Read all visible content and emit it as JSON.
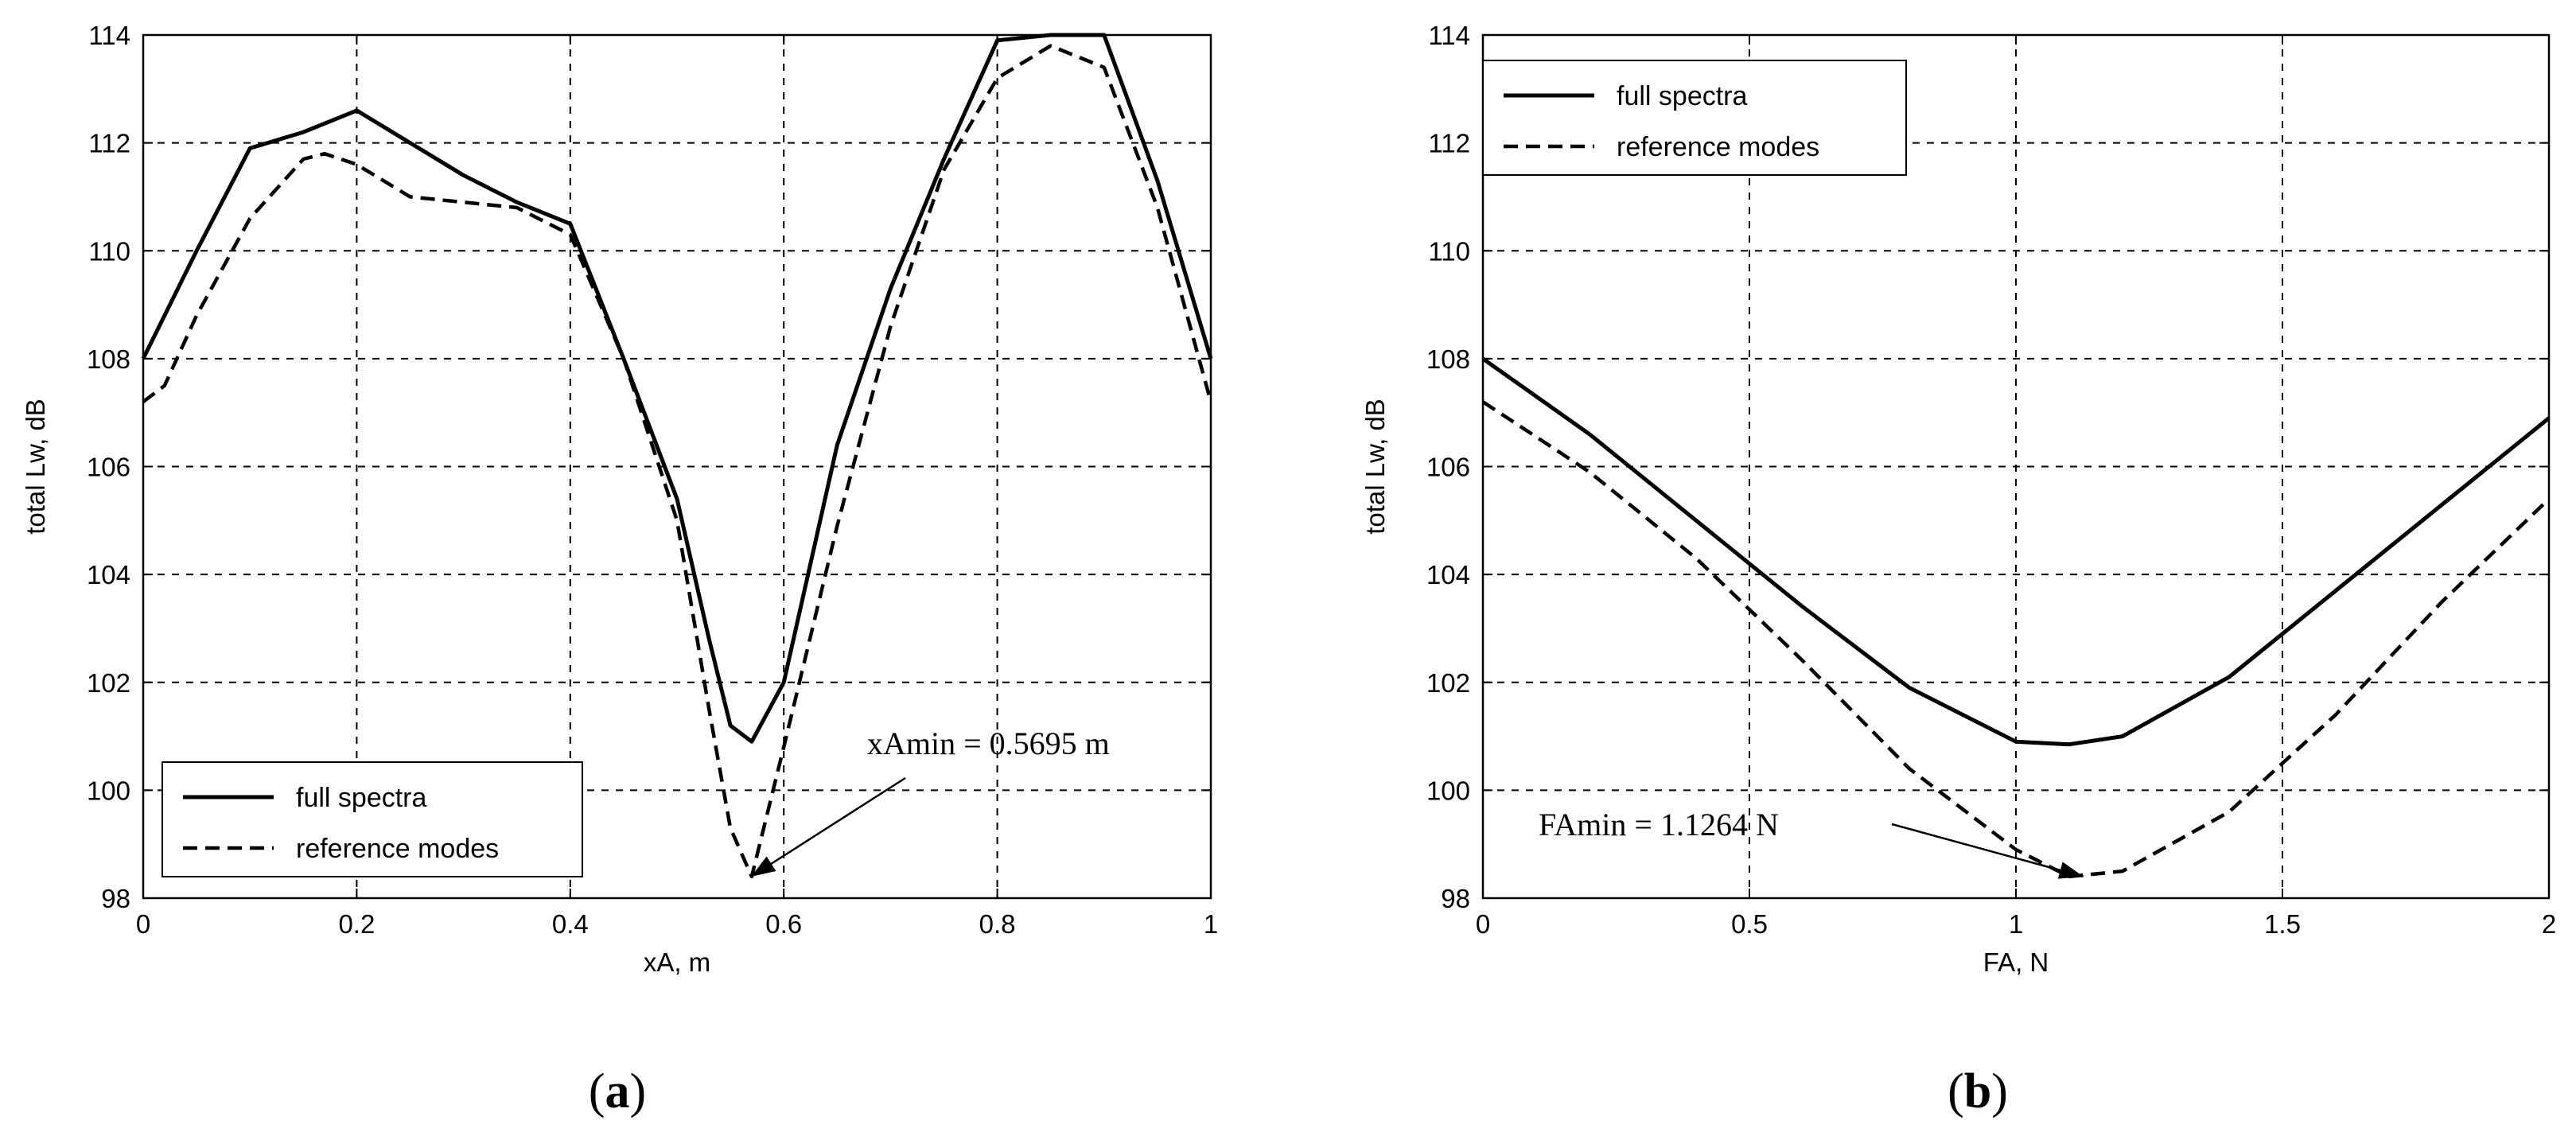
{
  "chart_data": [
    {
      "type": "line",
      "xlabel": "xA, m",
      "ylabel": "total Lw, dB",
      "xlim": [
        0,
        1
      ],
      "ylim": [
        98,
        114
      ],
      "xticks": [
        "0",
        "0.2",
        "0.4",
        "0.6",
        "0.8",
        "1"
      ],
      "xtick_values": [
        0,
        0.2,
        0.4,
        0.6,
        0.8,
        1
      ],
      "yticks": [
        "98",
        "100",
        "102",
        "104",
        "106",
        "108",
        "110",
        "112",
        "114"
      ],
      "ytick_values": [
        98,
        100,
        102,
        104,
        106,
        108,
        110,
        112,
        114
      ],
      "grid": true,
      "legend_position": "bottom-left",
      "series": [
        {
          "name": "full spectra",
          "style": "solid",
          "x": [
            0,
            0.05,
            0.1,
            0.15,
            0.2,
            0.25,
            0.3,
            0.35,
            0.4,
            0.45,
            0.5,
            0.53,
            0.55,
            0.57,
            0.6,
            0.65,
            0.7,
            0.75,
            0.8,
            0.85,
            0.9,
            0.95,
            1.0
          ],
          "y": [
            108.0,
            110.0,
            111.9,
            112.2,
            112.6,
            112.0,
            111.4,
            110.9,
            110.5,
            108.0,
            105.4,
            102.8,
            101.2,
            100.9,
            102.0,
            106.4,
            109.3,
            111.7,
            113.9,
            114.0,
            114.0,
            111.3,
            108.0
          ]
        },
        {
          "name": "reference modes",
          "style": "dashed",
          "x": [
            0,
            0.02,
            0.05,
            0.1,
            0.15,
            0.17,
            0.2,
            0.25,
            0.3,
            0.35,
            0.4,
            0.45,
            0.5,
            0.53,
            0.55,
            0.57,
            0.6,
            0.65,
            0.7,
            0.75,
            0.8,
            0.85,
            0.9,
            0.95,
            1.0
          ],
          "y": [
            107.2,
            107.5,
            108.8,
            110.6,
            111.7,
            111.8,
            111.6,
            111.0,
            110.9,
            110.8,
            110.3,
            108.0,
            105.0,
            101.5,
            99.3,
            98.4,
            100.8,
            104.9,
            108.6,
            111.5,
            113.2,
            113.8,
            113.4,
            110.8,
            107.2
          ]
        }
      ],
      "annotation": {
        "text": "xAmin = 0.5695 m",
        "x": 0.5695,
        "y": 98.4
      },
      "caption": "(a)"
    },
    {
      "type": "line",
      "xlabel": "FA, N",
      "ylabel": "total Lw, dB",
      "xlim": [
        0,
        2
      ],
      "ylim": [
        98,
        114
      ],
      "xticks": [
        "0",
        "0.5",
        "1",
        "1.5",
        "2"
      ],
      "xtick_values": [
        0,
        0.5,
        1,
        1.5,
        2
      ],
      "yticks": [
        "98",
        "100",
        "102",
        "104",
        "106",
        "108",
        "110",
        "112",
        "114"
      ],
      "ytick_values": [
        98,
        100,
        102,
        104,
        106,
        108,
        110,
        112,
        114
      ],
      "grid": true,
      "legend_position": "top-left",
      "series": [
        {
          "name": "full spectra",
          "style": "solid",
          "x": [
            0,
            0.2,
            0.4,
            0.6,
            0.8,
            1.0,
            1.1,
            1.2,
            1.4,
            1.6,
            1.8,
            2.0
          ],
          "y": [
            108.0,
            106.6,
            105.0,
            103.4,
            101.9,
            100.9,
            100.85,
            101.0,
            102.1,
            103.7,
            105.3,
            106.9
          ]
        },
        {
          "name": "reference modes",
          "style": "dashed",
          "x": [
            0,
            0.2,
            0.4,
            0.6,
            0.8,
            1.0,
            1.1,
            1.2,
            1.4,
            1.6,
            1.8,
            2.0
          ],
          "y": [
            107.2,
            105.9,
            104.3,
            102.4,
            100.4,
            98.9,
            98.4,
            98.5,
            99.6,
            101.4,
            103.5,
            105.4
          ]
        }
      ],
      "annotation": {
        "text": "FAmin = 1.1264 N",
        "x": 1.1264,
        "y": 98.4
      },
      "caption": "(b)"
    }
  ]
}
